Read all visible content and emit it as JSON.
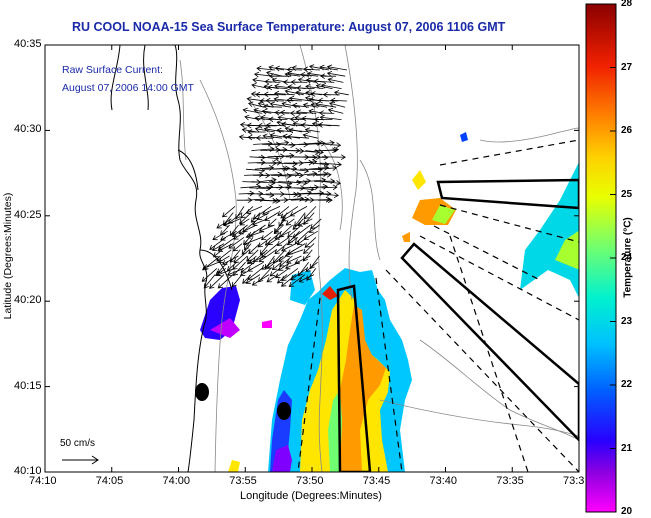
{
  "title": "RU COOL  NOAA-15  Sea Surface Temperature:  August 07, 2006 1106 GMT",
  "current_label": {
    "line1": "Raw Surface Current:",
    "line2": "August 07, 2006 14:00 GMT"
  },
  "axes": {
    "ylabel": "Latitude (Degrees:Minutes)",
    "xlabel": "Longitude (Degrees:Minutes)",
    "yticks": [
      "40:35",
      "40:30",
      "40:25",
      "40:20",
      "40:15",
      "40:10"
    ],
    "xticks": [
      "74:10",
      "74:05",
      "74:00",
      "73:55",
      "73:50",
      "73:45",
      "73:40",
      "73:35",
      "73:3"
    ]
  },
  "colorbar": {
    "label": "Temperature (°C)",
    "ticks": [
      "28",
      "27",
      "26",
      "25",
      "24",
      "23",
      "22",
      "21",
      "20"
    ],
    "colors": [
      "#ff00ff",
      "#6a00d8",
      "#0000ff",
      "#1e90ff",
      "#00d8e8",
      "#00ffb0",
      "#a8ff30",
      "#ffff00",
      "#ffb000",
      "#ff5a00",
      "#e00000",
      "#8b0000"
    ]
  },
  "scale_bar": {
    "label": "50 cm/s"
  },
  "colors": {
    "title": "#1a2aa8",
    "land_outline": "#000000",
    "isobath": "#888888",
    "arrow": "#000000"
  }
}
